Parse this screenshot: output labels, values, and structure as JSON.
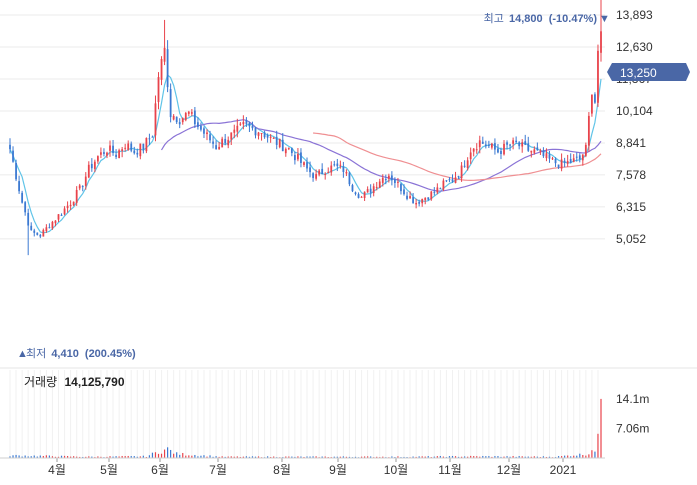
{
  "colors": {
    "up": "#e8434b",
    "down": "#3b79d2",
    "ma_short": "#60c4e8",
    "ma_mid": "#ef8f92",
    "ma_long": "#8a73d6",
    "current_tag": "#4a67a6",
    "grid": "#ebebeb",
    "label_blue": "#4a67a6"
  },
  "high_marker": {
    "prefix": "최고",
    "value": "14,800",
    "change": "(-10.47%)",
    "arrow": "▼"
  },
  "low_marker": {
    "prefix": "최저",
    "value": "4,410",
    "change": "(200.45%)",
    "arrow": "▲"
  },
  "current_price_tag": "13,250",
  "volume": {
    "label": "거래량",
    "value": "14,125,790"
  },
  "chart_data": {
    "type": "candlestick",
    "title": "",
    "xlabel": "",
    "ylabel": "",
    "ylim": [
      4500,
      15000
    ],
    "y_ticks": [
      "13,893",
      "12,630",
      "11,367",
      "10,104",
      "8,841",
      "7,578",
      "6,315",
      "5,052"
    ],
    "y_tick_values": [
      13893,
      12630,
      11367,
      10104,
      8841,
      7578,
      6315,
      5052
    ],
    "x_ticks": [
      "4월",
      "5월",
      "6월",
      "7월",
      "8월",
      "9월",
      "10월",
      "11월",
      "12월",
      "2021"
    ],
    "grid": true,
    "high": 14800,
    "low": 4410,
    "last_close": 13250,
    "volume_ticks": [
      "14.1m",
      "7.06m"
    ],
    "volume_tick_values": [
      14100000,
      7060000
    ],
    "last_volume": 14125790,
    "price_anchors": [
      [
        0,
        8600
      ],
      [
        4,
        6500
      ],
      [
        7,
        5300
      ],
      [
        10,
        5200
      ],
      [
        13,
        5600
      ],
      [
        17,
        6100
      ],
      [
        20,
        6500
      ],
      [
        23,
        7000
      ],
      [
        26,
        7800
      ],
      [
        29,
        8300
      ],
      [
        32,
        8600
      ],
      [
        35,
        8400
      ],
      [
        38,
        8800
      ],
      [
        41,
        8500
      ],
      [
        44,
        8700
      ],
      [
        47,
        9200
      ],
      [
        49,
        11500
      ],
      [
        51,
        12500
      ],
      [
        53,
        10000
      ],
      [
        56,
        9800
      ],
      [
        59,
        10000
      ],
      [
        62,
        9500
      ],
      [
        65,
        9100
      ],
      [
        68,
        8700
      ],
      [
        71,
        9000
      ],
      [
        74,
        9200
      ],
      [
        77,
        9500
      ],
      [
        80,
        9400
      ],
      [
        83,
        9300
      ],
      [
        86,
        9000
      ],
      [
        89,
        8800
      ],
      [
        92,
        8600
      ],
      [
        95,
        8200
      ],
      [
        98,
        7800
      ],
      [
        101,
        7500
      ],
      [
        104,
        7800
      ],
      [
        107,
        7900
      ],
      [
        110,
        7800
      ],
      [
        113,
        7100
      ],
      [
        116,
        6700
      ],
      [
        119,
        7000
      ],
      [
        122,
        7400
      ],
      [
        125,
        7600
      ],
      [
        128,
        7200
      ],
      [
        131,
        6800
      ],
      [
        134,
        6500
      ],
      [
        137,
        6700
      ],
      [
        140,
        6900
      ],
      [
        143,
        7200
      ],
      [
        146,
        7400
      ],
      [
        149,
        7800
      ],
      [
        152,
        8600
      ],
      [
        155,
        8900
      ],
      [
        158,
        8700
      ],
      [
        161,
        8500
      ],
      [
        164,
        8700
      ],
      [
        167,
        8800
      ],
      [
        170,
        8600
      ],
      [
        173,
        8500
      ],
      [
        176,
        8300
      ],
      [
        179,
        8100
      ],
      [
        182,
        8000
      ],
      [
        185,
        8100
      ],
      [
        188,
        8200
      ],
      [
        190,
        8600
      ],
      [
        192,
        11000
      ],
      [
        193,
        10500
      ],
      [
        194,
        12500
      ],
      [
        195,
        13250
      ]
    ],
    "volume_anchors": [
      [
        0,
        0.6
      ],
      [
        10,
        0.5
      ],
      [
        25,
        0.3
      ],
      [
        45,
        0.4
      ],
      [
        49,
        1.5
      ],
      [
        52,
        2.1
      ],
      [
        55,
        1.0
      ],
      [
        70,
        0.3
      ],
      [
        100,
        0.3
      ],
      [
        130,
        0.3
      ],
      [
        155,
        0.4
      ],
      [
        180,
        0.3
      ],
      [
        191,
        1.0
      ],
      [
        192,
        2.6
      ],
      [
        193,
        1.5
      ],
      [
        194,
        4.2
      ],
      [
        195,
        7.5
      ]
    ],
    "series": [
      {
        "name": "",
        "type": "candles"
      },
      {
        "name": "",
        "type": "moving-average-short"
      },
      {
        "name": "",
        "type": "moving-average-mid"
      },
      {
        "name": "",
        "type": "moving-average-long"
      }
    ]
  }
}
